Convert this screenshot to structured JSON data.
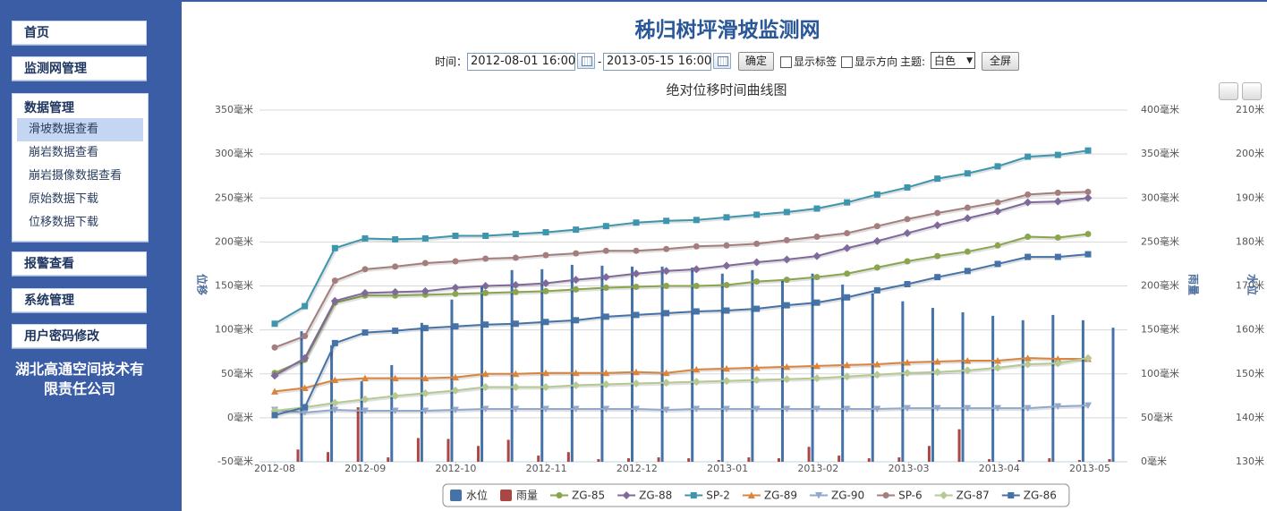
{
  "sidebar": {
    "menu_top": [
      "首页",
      "监测网管理"
    ],
    "data_menu": {
      "title": "数据管理",
      "items": [
        "滑坡数据查看",
        "崩岩数据查看",
        "崩岩摄像数据查看",
        "原始数据下载",
        "位移数据下载"
      ],
      "selected": 0
    },
    "menu_bottom": [
      "报警查看",
      "系统管理",
      "用户密码修改"
    ],
    "company": "湖北高通空间技术有限责任公司"
  },
  "header": {
    "title": "秭归树坪滑坡监测网"
  },
  "toolbar": {
    "time_label": "时间：",
    "start": "2012-08-01 16:00",
    "separator": "-",
    "end": "2013-05-15 16:00",
    "confirm": "确定",
    "show_labels": "显示标签",
    "show_direction": "显示方向",
    "theme_label": "主题:",
    "theme": "白色",
    "fullscreen": "全屏"
  },
  "chart_data": {
    "type": "line",
    "title": "绝对位移时间曲线图",
    "ylabel": "位移",
    "y2label": "雨量",
    "y3label": "水位",
    "xticks": [
      "2012-08",
      "2012-09",
      "2012-10",
      "2012-11",
      "2012-12",
      "2013-01",
      "2013-02",
      "2013-03",
      "2013-04",
      "2013-05"
    ],
    "ylim": [
      -50,
      350
    ],
    "yticks": [
      {
        "value": -50,
        "label": "-50毫米"
      },
      {
        "value": 0,
        "label": "0毫米"
      },
      {
        "value": 50,
        "label": "50毫米"
      },
      {
        "value": 100,
        "label": "100毫米"
      },
      {
        "value": 150,
        "label": "150毫米"
      },
      {
        "value": 200,
        "label": "200毫米"
      },
      {
        "value": 250,
        "label": "250毫米"
      },
      {
        "value": 300,
        "label": "300毫米"
      },
      {
        "value": 350,
        "label": "350毫米"
      }
    ],
    "y2lim": [
      0,
      400
    ],
    "y2ticks": [
      {
        "value": 0,
        "label": "0毫米"
      },
      {
        "value": 50,
        "label": "50毫米"
      },
      {
        "value": 100,
        "label": "100毫米"
      },
      {
        "value": 150,
        "label": "150毫米"
      },
      {
        "value": 200,
        "label": "200毫米"
      },
      {
        "value": 250,
        "label": "250毫米"
      },
      {
        "value": 300,
        "label": "300毫米"
      },
      {
        "value": 350,
        "label": "350毫米"
      },
      {
        "value": 400,
        "label": "400毫米"
      }
    ],
    "y3lim": [
      130,
      210
    ],
    "y3ticks": [
      {
        "value": 130,
        "label": "130米"
      },
      {
        "value": 140,
        "label": "140米"
      },
      {
        "value": 150,
        "label": "150米"
      },
      {
        "value": 160,
        "label": "160米"
      },
      {
        "value": 170,
        "label": "170米"
      },
      {
        "value": 180,
        "label": "180米"
      },
      {
        "value": 190,
        "label": "190米"
      },
      {
        "value": 200,
        "label": "200米"
      },
      {
        "value": 210,
        "label": "210米"
      }
    ],
    "grid": true,
    "series": [
      {
        "name": "水位",
        "type": "bar",
        "axis": "y3",
        "color": "#4572a7",
        "values": [
          159.7,
          156.5,
          148.3,
          152,
          161.6,
          166.9,
          170,
          173.6,
          173.8,
          174.8,
          174.6,
          174.4,
          174.4,
          174.2,
          172.8,
          173.6,
          171.5,
          172.8,
          170.3,
          168.3,
          166.5,
          165,
          164,
          163.2,
          162.2,
          163.4,
          162.2,
          160.5
        ]
      },
      {
        "name": "雨量",
        "type": "bar",
        "axis": "y2",
        "color": "#aa4643",
        "values": [
          14,
          11,
          62,
          5,
          27,
          26,
          18,
          25,
          7,
          11,
          3,
          4,
          5,
          4,
          2,
          5,
          4,
          17,
          7,
          4,
          5,
          18,
          37,
          3,
          2,
          4,
          2,
          3
        ]
      },
      {
        "name": "ZG-85",
        "type": "line",
        "marker": "circle",
        "color": "#89a54e",
        "values": [
          51,
          66,
          131,
          139,
          139,
          140,
          141,
          142,
          143,
          144,
          146,
          148,
          149,
          150,
          150,
          151,
          155,
          157,
          160,
          164,
          171,
          178,
          184,
          189,
          196,
          206,
          205,
          209
        ]
      },
      {
        "name": "ZG-88",
        "type": "line",
        "marker": "diamond",
        "color": "#80699b",
        "values": [
          48,
          68,
          133,
          142,
          143,
          144,
          148,
          150,
          151,
          153,
          157,
          160,
          164,
          167,
          169,
          173,
          177,
          180,
          184,
          193,
          201,
          210,
          219,
          227,
          235,
          245,
          246,
          250
        ]
      },
      {
        "name": "SP-2",
        "type": "line",
        "marker": "square",
        "color": "#3d96ae",
        "values": [
          107,
          127,
          193,
          204,
          203,
          204,
          207,
          207,
          209,
          211,
          214,
          218,
          222,
          224,
          225,
          228,
          231,
          234,
          238,
          245,
          254,
          262,
          272,
          278,
          286,
          297,
          299,
          304
        ]
      },
      {
        "name": "ZG-89",
        "type": "line",
        "marker": "triangle",
        "color": "#db843d",
        "values": [
          30,
          34,
          43,
          45,
          45,
          45,
          46,
          50,
          50,
          51,
          51,
          51,
          52,
          51,
          55,
          56,
          57,
          58,
          59,
          60,
          61,
          63,
          64,
          65,
          65,
          68,
          67,
          67
        ]
      },
      {
        "name": "ZG-90",
        "type": "line",
        "marker": "triangle-down",
        "color": "#92a8cd",
        "values": [
          9,
          6,
          9,
          8,
          8,
          8,
          9,
          10,
          10,
          10,
          10,
          10,
          10,
          9,
          10,
          10,
          10,
          10,
          10,
          10,
          10,
          11,
          11,
          11,
          11,
          11,
          13,
          14
        ]
      },
      {
        "name": "SP-6",
        "type": "line",
        "marker": "circle",
        "color": "#a47d7c",
        "values": [
          80,
          93,
          156,
          169,
          172,
          176,
          178,
          181,
          182,
          185,
          187,
          190,
          190,
          192,
          195,
          196,
          198,
          202,
          206,
          210,
          218,
          226,
          233,
          239,
          245,
          254,
          256,
          257
        ]
      },
      {
        "name": "ZG-87",
        "type": "line",
        "marker": "diamond",
        "color": "#b5ca92",
        "values": [
          8,
          12,
          17,
          21,
          25,
          28,
          31,
          35,
          35,
          35,
          37,
          38,
          39,
          40,
          41,
          42,
          43,
          44,
          45,
          47,
          49,
          51,
          52,
          54,
          57,
          61,
          62,
          68
        ]
      },
      {
        "name": "ZG-86",
        "type": "line",
        "marker": "square",
        "color": "#4572a7",
        "values": [
          3,
          12,
          85,
          97,
          99,
          102,
          104,
          106,
          107,
          109,
          111,
          115,
          117,
          119,
          121,
          122,
          124,
          128,
          131,
          137,
          145,
          152,
          160,
          167,
          175,
          183,
          183,
          186
        ]
      }
    ]
  }
}
